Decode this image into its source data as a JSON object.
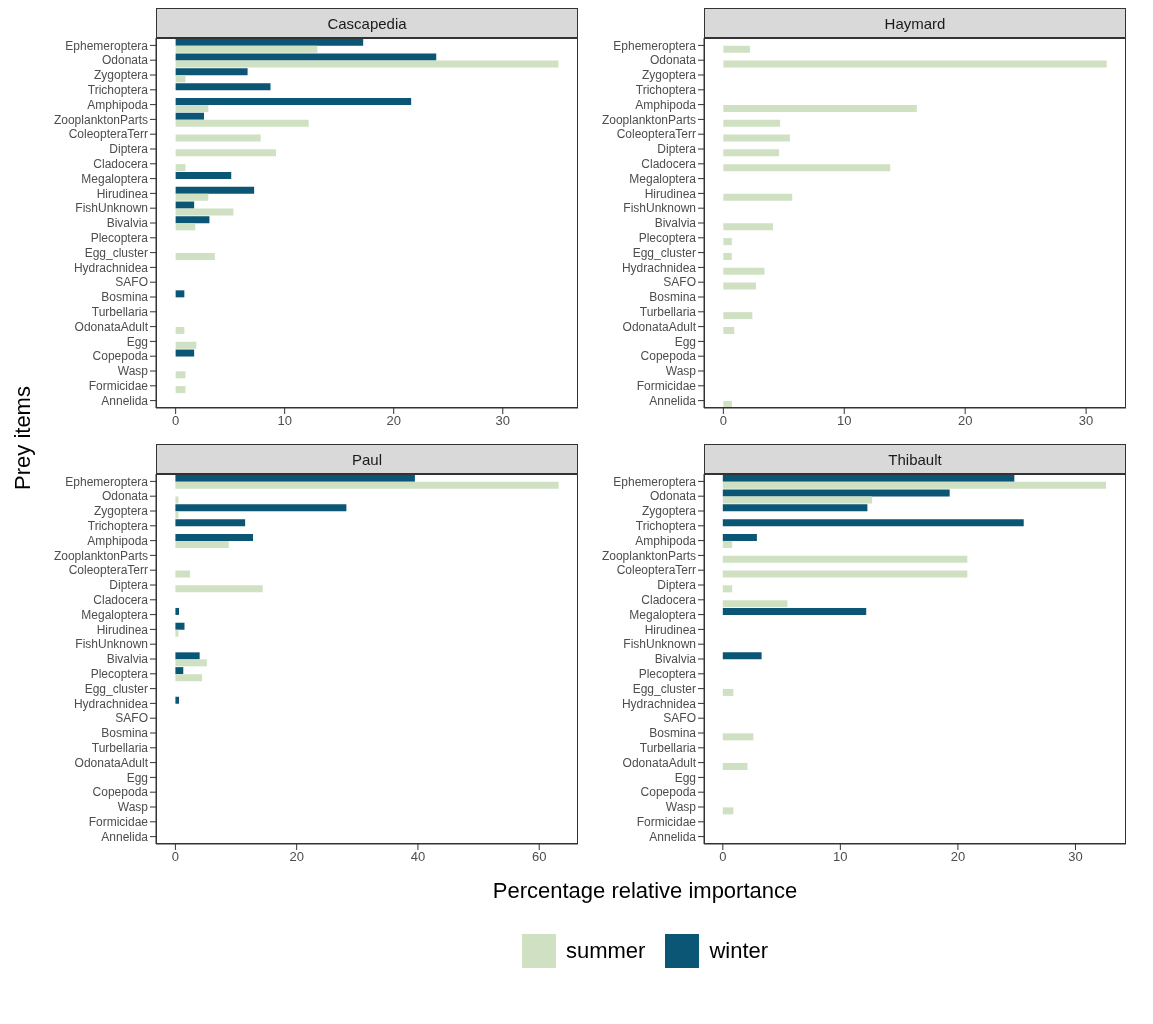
{
  "chart_data": [
    {
      "type": "bar",
      "orientation": "horizontal",
      "title": "Cascapedia",
      "legend": "bottom",
      "ylabel": "Prey items",
      "categories": [
        "Ephemeroptera",
        "Odonata",
        "Zygoptera",
        "Trichoptera",
        "Amphipoda",
        "ZooplanktonParts",
        "ColeopteraTerr",
        "Diptera",
        "Cladocera",
        "Megaloptera",
        "Hirudinea",
        "FishUnknown",
        "Bivalvia",
        "Plecoptera",
        "Egg_cluster",
        "Hydrachnidea",
        "SAFO",
        "Bosmina",
        "Turbellaria",
        "OdonataAdult",
        "Egg",
        "Copepoda",
        "Wasp",
        "Formicidae",
        "Annelida"
      ],
      "xlim": [
        -1.8,
        36.9
      ],
      "xticks": [
        0,
        10,
        20,
        30
      ],
      "grid": false,
      "series": [
        {
          "name": "summer",
          "color": "#cfe0c3",
          "values": [
            13.0,
            35.1,
            0.9,
            null,
            3.0,
            12.2,
            7.8,
            9.2,
            0.9,
            null,
            3.0,
            5.3,
            1.8,
            null,
            3.6,
            null,
            null,
            null,
            null,
            0.8,
            1.9,
            null,
            0.9,
            0.9,
            null
          ]
        },
        {
          "name": "winter",
          "color": "#0b5575",
          "values": [
            17.2,
            23.9,
            6.6,
            8.7,
            21.6,
            2.6,
            null,
            null,
            null,
            5.1,
            7.2,
            1.7,
            3.1,
            null,
            null,
            null,
            null,
            0.8,
            null,
            null,
            null,
            1.7,
            null,
            null,
            null
          ]
        }
      ]
    },
    {
      "type": "bar",
      "orientation": "horizontal",
      "title": "Haymard",
      "categories": [
        "Ephemeroptera",
        "Odonata",
        "Zygoptera",
        "Trichoptera",
        "Amphipoda",
        "ZooplanktonParts",
        "ColeopteraTerr",
        "Diptera",
        "Cladocera",
        "Megaloptera",
        "Hirudinea",
        "FishUnknown",
        "Bivalvia",
        "Plecoptera",
        "Egg_cluster",
        "Hydrachnidea",
        "SAFO",
        "Bosmina",
        "Turbellaria",
        "OdonataAdult",
        "Egg",
        "Copepoda",
        "Wasp",
        "Formicidae",
        "Annelida"
      ],
      "xlim": [
        -1.6,
        33.3
      ],
      "xticks": [
        0,
        10,
        20,
        30
      ],
      "grid": false,
      "series": [
        {
          "color": "#cfe0c3",
          "values": [
            2.2,
            31.7,
            null,
            null,
            16.0,
            4.7,
            5.5,
            4.6,
            13.8,
            null,
            5.7,
            null,
            4.1,
            0.7,
            0.7,
            3.4,
            2.7,
            null,
            2.4,
            0.9,
            null,
            null,
            null,
            null,
            0.7
          ]
        },
        {
          "color": "#0b5575",
          "values": [
            null,
            null,
            null,
            null,
            null,
            null,
            null,
            null,
            null,
            null,
            null,
            null,
            null,
            null,
            null,
            null,
            null,
            null,
            null,
            null,
            null,
            null,
            null,
            null,
            null
          ]
        }
      ]
    },
    {
      "type": "bar",
      "orientation": "horizontal",
      "title": "Paul",
      "xlabel": "Percentage relative importance",
      "categories": [
        "Ephemeroptera",
        "Odonata",
        "Zygoptera",
        "Trichoptera",
        "Amphipoda",
        "ZooplanktonParts",
        "ColeopteraTerr",
        "Diptera",
        "Cladocera",
        "Megaloptera",
        "Hirudinea",
        "FishUnknown",
        "Bivalvia",
        "Plecoptera",
        "Egg_cluster",
        "Hydrachnidea",
        "SAFO",
        "Bosmina",
        "Turbellaria",
        "OdonataAdult",
        "Egg",
        "Copepoda",
        "Wasp",
        "Formicidae",
        "Annelida"
      ],
      "xlim": [
        -3.2,
        66.4
      ],
      "xticks": [
        0,
        20,
        40,
        60
      ],
      "grid": false,
      "series": [
        {
          "color": "#cfe0c3",
          "values": [
            63.2,
            0.5,
            0.5,
            null,
            8.8,
            null,
            2.4,
            14.4,
            null,
            null,
            0.5,
            null,
            5.2,
            4.4,
            null,
            null,
            null,
            null,
            null,
            null,
            null,
            null,
            null,
            null,
            null
          ]
        },
        {
          "color": "#0b5575",
          "values": [
            39.5,
            null,
            28.2,
            11.5,
            12.8,
            null,
            null,
            null,
            null,
            0.6,
            1.5,
            null,
            4.0,
            1.3,
            null,
            0.6,
            null,
            null,
            null,
            null,
            null,
            null,
            null,
            null,
            null
          ]
        }
      ]
    },
    {
      "type": "bar",
      "orientation": "horizontal",
      "title": "Thibault",
      "categories": [
        "Ephemeroptera",
        "Odonata",
        "Zygoptera",
        "Trichoptera",
        "Amphipoda",
        "ZooplanktonParts",
        "ColeopteraTerr",
        "Diptera",
        "Cladocera",
        "Megaloptera",
        "Hirudinea",
        "FishUnknown",
        "Bivalvia",
        "Plecoptera",
        "Egg_cluster",
        "Hydrachnidea",
        "SAFO",
        "Bosmina",
        "Turbellaria",
        "OdonataAdult",
        "Egg",
        "Copepoda",
        "Wasp",
        "Formicidae",
        "Annelida"
      ],
      "xlim": [
        -1.6,
        34.3
      ],
      "xticks": [
        0,
        10,
        20,
        30
      ],
      "grid": false,
      "series": [
        {
          "color": "#cfe0c3",
          "values": [
            32.6,
            12.7,
            null,
            null,
            0.8,
            20.8,
            20.8,
            0.8,
            5.5,
            null,
            null,
            null,
            null,
            null,
            0.9,
            null,
            null,
            2.6,
            null,
            2.1,
            null,
            null,
            0.9,
            null,
            null
          ]
        },
        {
          "color": "#0b5575",
          "values": [
            24.8,
            19.3,
            12.3,
            25.6,
            2.9,
            null,
            null,
            null,
            null,
            12.2,
            null,
            null,
            3.3,
            null,
            null,
            null,
            null,
            null,
            null,
            null,
            null,
            null,
            null,
            null,
            null
          ]
        }
      ]
    }
  ]
}
